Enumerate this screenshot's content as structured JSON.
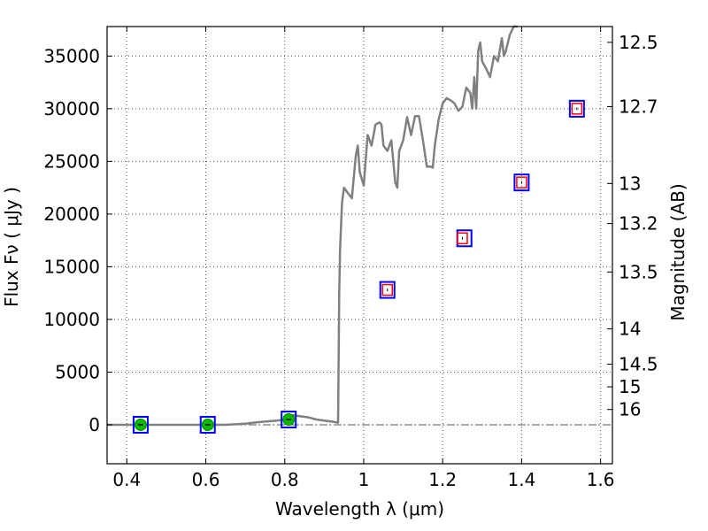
{
  "chart_data": {
    "type": "line",
    "xlabel": "Wavelength  λ (μm)",
    "ylabel": "Flux  Fν  ( μJy )",
    "y2label": "Magnitude (AB)",
    "xlim": [
      0.35,
      1.63
    ],
    "ylim": [
      -3700,
      37800
    ],
    "grid": true,
    "x_ticks": [
      0.4,
      0.6,
      0.8,
      1.0,
      1.2,
      1.4,
      1.6
    ],
    "x_tick_labels": [
      "0.4",
      "0.6",
      "0.8",
      "1",
      "1.2",
      "1.4",
      "1.6"
    ],
    "y_ticks": [
      0,
      5000,
      10000,
      15000,
      20000,
      25000,
      30000,
      35000
    ],
    "y_tick_labels": [
      "0",
      "5000",
      "10000",
      "15000",
      "20000",
      "25000",
      "30000",
      "35000"
    ],
    "mag_ticks": [
      {
        "label": "12.5",
        "flux": 36300
      },
      {
        "label": "12.7",
        "flux": 30200
      },
      {
        "label": "13",
        "flux": 22900
      },
      {
        "label": "13.2",
        "flux": 19100
      },
      {
        "label": "13.5",
        "flux": 14500
      },
      {
        "label": "14",
        "flux": 9100
      },
      {
        "label": "14.5",
        "flux": 5750
      },
      {
        "label": "15",
        "flux": 3600
      },
      {
        "label": "16",
        "flux": 1450
      }
    ],
    "zero_line": 0,
    "colors": {
      "spectrum": "#808080",
      "model_box": "#0000ff",
      "observed_box": "#ff0000",
      "detection": "#00bb00",
      "grid": "#555555"
    },
    "series": [
      {
        "kind": "spectrum",
        "x": [
          0.35,
          0.4,
          0.45,
          0.5,
          0.55,
          0.6,
          0.65,
          0.7,
          0.72,
          0.75,
          0.78,
          0.8,
          0.82,
          0.84,
          0.86,
          0.88,
          0.9,
          0.92,
          0.935,
          0.938,
          0.94,
          0.945,
          0.95,
          0.96,
          0.97,
          0.98,
          0.985,
          0.99,
          1.0,
          1.01,
          1.02,
          1.03,
          1.04,
          1.045,
          1.05,
          1.06,
          1.07,
          1.08,
          1.085,
          1.09,
          1.1,
          1.11,
          1.12,
          1.13,
          1.14,
          1.15,
          1.16,
          1.17,
          1.175,
          1.18,
          1.19,
          1.2,
          1.21,
          1.22,
          1.23,
          1.24,
          1.25,
          1.26,
          1.27,
          1.275,
          1.28,
          1.285,
          1.29,
          1.295,
          1.3,
          1.31,
          1.32,
          1.33,
          1.34,
          1.35,
          1.355,
          1.36,
          1.37,
          1.38,
          1.39
        ],
        "y": [
          0,
          0,
          0,
          0,
          0,
          0,
          0,
          100,
          200,
          300,
          400,
          500,
          900,
          800,
          700,
          500,
          400,
          300,
          200,
          12500,
          16500,
          21000,
          22500,
          22000,
          21500,
          25500,
          26500,
          24000,
          22700,
          27500,
          26500,
          28500,
          28700,
          28500,
          26500,
          26000,
          27000,
          23000,
          22500,
          26000,
          27000,
          29200,
          27500,
          29300,
          29300,
          27000,
          24500,
          24500,
          24400,
          26500,
          29000,
          30500,
          31000,
          30800,
          30500,
          29800,
          30200,
          32000,
          31500,
          30000,
          33000,
          30000,
          35500,
          36300,
          34500,
          33800,
          33000,
          35000,
          34500,
          36700,
          35000,
          35500,
          37000,
          37800,
          37800
        ]
      },
      {
        "kind": "observed",
        "x": [
          1.06,
          1.25,
          1.4,
          1.54
        ],
        "y": [
          12800,
          17700,
          23000,
          30000
        ]
      },
      {
        "kind": "model",
        "x": [
          0.435,
          0.605,
          0.81,
          1.06,
          1.255,
          1.4,
          1.54
        ],
        "y": [
          0,
          0,
          500,
          12800,
          17700,
          23000,
          30000
        ]
      },
      {
        "kind": "detection",
        "x": [
          0.435,
          0.605,
          0.81
        ],
        "y": [
          0,
          0,
          500
        ]
      }
    ]
  }
}
